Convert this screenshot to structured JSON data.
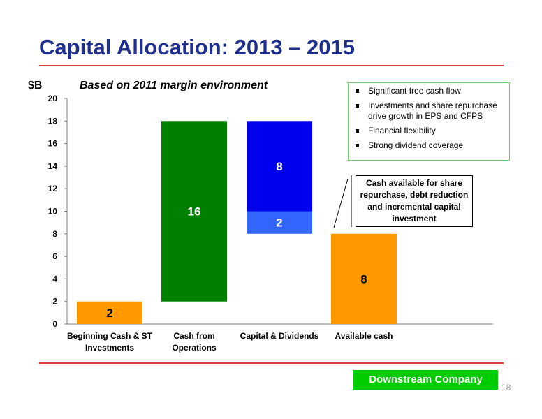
{
  "title": "Capital Allocation: 2013 – 2015",
  "bullets": [
    "Significant free cash flow",
    "Investments and share repurchase drive growth in EPS and CFPS",
    "Financial flexibility",
    "Strong dividend coverage"
  ],
  "callout": "Cash available for share repurchase, debt reduction and incremental capital investment",
  "badge": "Downstream Company",
  "page_number": "18",
  "chart_data": {
    "type": "bar",
    "title": "Based on 2011 margin environment",
    "ylabel": "$B",
    "xlabel": "",
    "ylim": [
      0,
      20
    ],
    "yticks": [
      0,
      2,
      4,
      6,
      8,
      10,
      12,
      14,
      16,
      18,
      20
    ],
    "grid": false,
    "categories": [
      "Beginning Cash & ST Investments",
      "Cash from Operations",
      "Capital & Dividends",
      "Available cash"
    ],
    "segments": [
      {
        "category": 0,
        "bottom": 0,
        "top": 2,
        "label": "2",
        "color": "#ff9900",
        "label_color": "#000000"
      },
      {
        "category": 1,
        "bottom": 2,
        "top": 18,
        "label": "16",
        "color": "#008000",
        "label_color": "#ffffff"
      },
      {
        "category": 2,
        "bottom": 8,
        "top": 10,
        "label": "2",
        "color": "#3366ff",
        "label_color": "#ffffff"
      },
      {
        "category": 2,
        "bottom": 10,
        "top": 18,
        "label": "8",
        "color": "#0000ee",
        "label_color": "#ffffff"
      },
      {
        "category": 3,
        "bottom": 0,
        "top": 8,
        "label": "8",
        "color": "#ff9900",
        "label_color": "#000000"
      }
    ]
  }
}
